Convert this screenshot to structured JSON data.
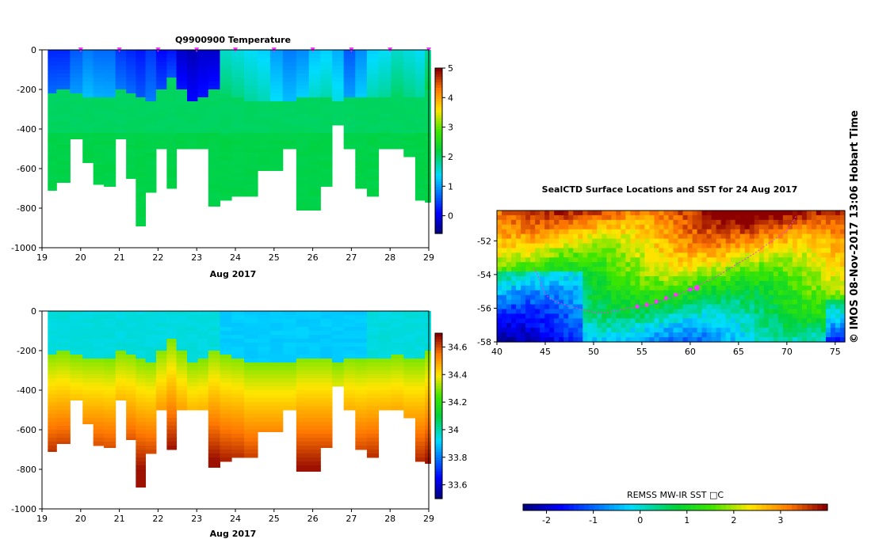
{
  "chart_data": [
    {
      "type": "heatmap",
      "title": "Q9900900  Temperature",
      "xlabel": "Aug 2017",
      "ylabel": "",
      "xlim": [
        19,
        29
      ],
      "ylim": [
        -1000,
        0
      ],
      "xticks": [
        "19",
        "20",
        "21",
        "22",
        "23",
        "24",
        "25",
        "26",
        "27",
        "28",
        "29"
      ],
      "yticks": [
        "0",
        "-200",
        "-400",
        "-600",
        "-800",
        "-1000"
      ],
      "colorbar": {
        "min": -0.6,
        "max": 5,
        "ticks": [
          "0",
          "1",
          "2",
          "3",
          "4",
          "5"
        ]
      },
      "profile_times": [
        19.2,
        19.55,
        19.9,
        20.2,
        20.45,
        20.75,
        21.05,
        21.3,
        21.55,
        21.8,
        22.1,
        22.35,
        22.6,
        22.9,
        23.15,
        23.45,
        23.75,
        24.05,
        24.4,
        24.75,
        25.05,
        25.4,
        25.75,
        26.05,
        26.35,
        26.65,
        26.95,
        27.25,
        27.55,
        27.85,
        28.2,
        28.5,
        28.8,
        29.0
      ],
      "profile_max_depth": [
        -710,
        -670,
        -450,
        -570,
        -680,
        -690,
        -450,
        -650,
        -890,
        -720,
        -500,
        -700,
        -500,
        -500,
        -500,
        -790,
        -760,
        -740,
        -740,
        -610,
        -610,
        -500,
        -810,
        -810,
        -690,
        -380,
        -500,
        -700,
        -740,
        -500,
        -500,
        -540,
        -760,
        -770
      ],
      "profile_thermocline_depth": [
        -210,
        -200,
        -220,
        -230,
        -230,
        -240,
        -200,
        -210,
        -240,
        -250,
        -190,
        -140,
        -200,
        -250,
        -240,
        -190,
        -220,
        -230,
        -260,
        -260,
        -260,
        -260,
        -230,
        -230,
        -230,
        -260,
        -230,
        -240,
        -230,
        -230,
        -220,
        -240,
        -240,
        -200
      ],
      "profile_surface_temp": [
        0.3,
        0.3,
        0.6,
        0.8,
        0.7,
        0.7,
        0.4,
        0.3,
        0.2,
        0.4,
        0.1,
        0.2,
        -0.2,
        -0.3,
        -0.2,
        -0.2,
        1.6,
        1.5,
        1.4,
        1.3,
        1.0,
        0.8,
        0.9,
        1.2,
        1.3,
        1.1,
        0.6,
        0.9,
        1.3,
        1.4,
        1.6,
        1.5,
        1.4,
        1.8
      ],
      "markers": [
        20.0,
        21.0,
        22.0,
        23.0,
        24.0,
        25.0,
        26.0,
        27.0,
        28.0,
        29.0
      ]
    },
    {
      "type": "heatmap",
      "title": "",
      "xlabel": "Aug 2017",
      "ylabel": "",
      "xlim": [
        19,
        29
      ],
      "ylim": [
        -1000,
        0
      ],
      "xticks": [
        "19",
        "20",
        "21",
        "22",
        "23",
        "24",
        "25",
        "26",
        "27",
        "28",
        "29"
      ],
      "yticks": [
        "0",
        "-200",
        "-400",
        "-600",
        "-800",
        "-1000"
      ],
      "colorbar": {
        "min": 33.5,
        "max": 34.7,
        "ticks": [
          "33.6",
          "33.8",
          "34",
          "34.2",
          "34.4",
          "34.6"
        ]
      }
    },
    {
      "type": "heatmap",
      "title": "SealCTD Surface Locations and SST for 24 Aug 2017",
      "xlabel": "",
      "ylabel": "",
      "xlim": [
        40,
        76
      ],
      "ylim": [
        -58,
        -50.2
      ],
      "xticks": [
        "40",
        "45",
        "50",
        "55",
        "60",
        "65",
        "70",
        "75"
      ],
      "yticks": [
        "-52",
        "-54",
        "-56",
        "-58"
      ],
      "colorbar": {
        "label": "REMSS MW-IR SST □C",
        "min": -2.5,
        "max": 4,
        "ticks": [
          "-2",
          "-1",
          "0",
          "1",
          "2",
          "3"
        ]
      },
      "track_lon": [
        43.8,
        44.2,
        45.0,
        46.0,
        47.5,
        49.0,
        50.5,
        52.0,
        53.5,
        55.0,
        56.5,
        58.0,
        59.5,
        60.7,
        62.5,
        64.5,
        66.5,
        68.5,
        70.0,
        70.6,
        71.0
      ],
      "track_lat": [
        -53.6,
        -54.0,
        -55.2,
        -55.6,
        -55.9,
        -56.1,
        -56.3,
        -56.2,
        -56.0,
        -55.9,
        -55.7,
        -55.4,
        -55.0,
        -54.7,
        -54.2,
        -53.5,
        -52.8,
        -52.0,
        -51.4,
        -50.9,
        -50.5
      ],
      "highlight_lon": [
        54.5,
        55.5,
        56.5,
        57.5,
        58.5,
        60.0,
        60.7
      ],
      "highlight_lat": [
        -55.9,
        -55.8,
        -55.6,
        -55.4,
        -55.2,
        -54.9,
        -54.8
      ]
    }
  ],
  "stamp": "© IMOS 08-Nov-2017 13:06 Hobart Time"
}
